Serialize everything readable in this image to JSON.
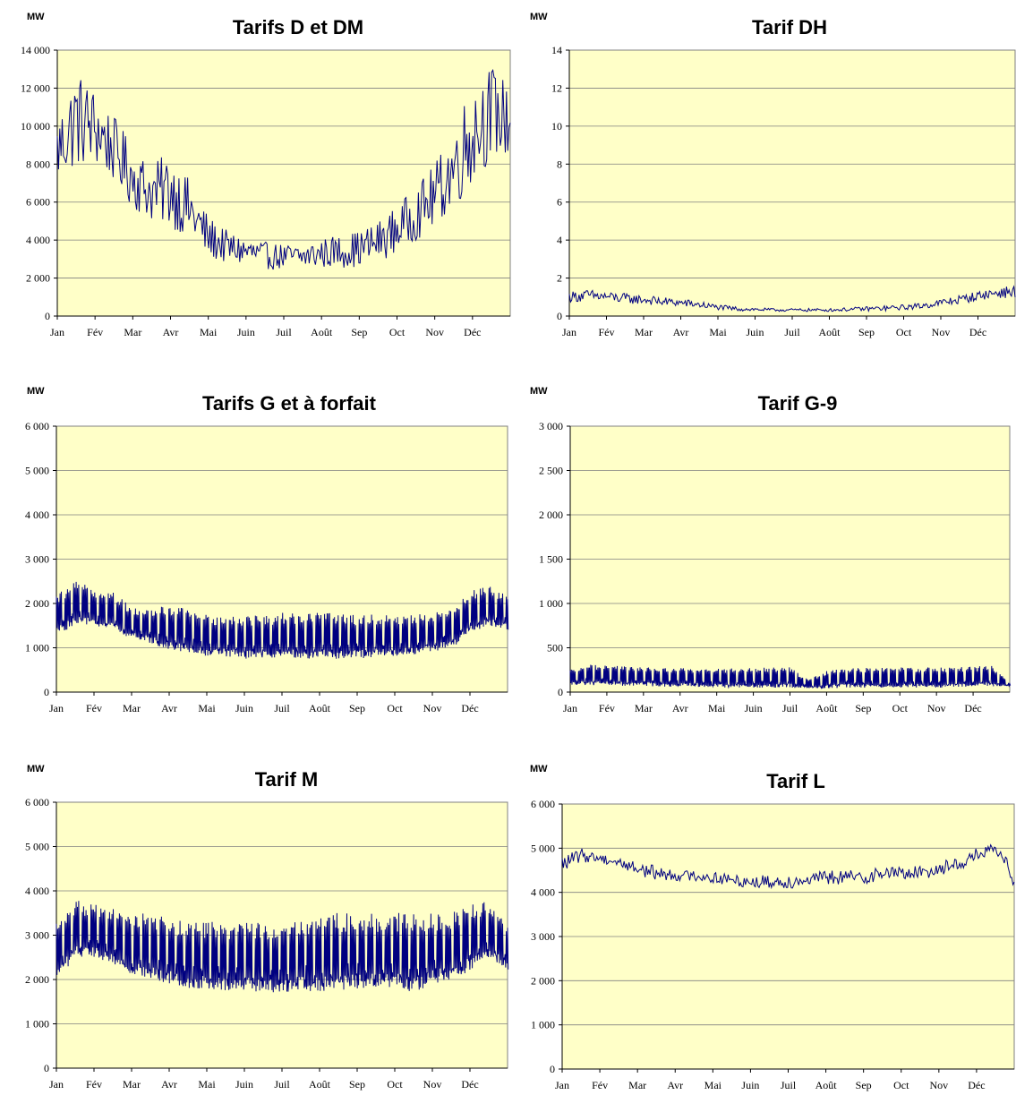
{
  "chart_data": [
    {
      "type": "line",
      "title": "Tarifs D et DM",
      "ylabel": "MW",
      "ylim": [
        0,
        14000
      ],
      "yticks": [
        0,
        2000,
        4000,
        6000,
        8000,
        10000,
        12000,
        14000
      ],
      "ytick_labels": [
        "0",
        "2 000",
        "4 000",
        "6 000",
        "8 000",
        "10 000",
        "12 000",
        "14 000"
      ],
      "categories": [
        "Jan",
        "Fév",
        "Mar",
        "Avr",
        "Mai",
        "Juin",
        "Juil",
        "Août",
        "Sep",
        "Oct",
        "Nov",
        "Déc"
      ],
      "grid": true,
      "series": [
        {
          "x": [
            0,
            0.5,
            1,
            1.5,
            2,
            2.5,
            3,
            3.5,
            4,
            4.5,
            5,
            5.5,
            6,
            6.5,
            7,
            7.5,
            8,
            8.5,
            9,
            9.5,
            10,
            10.5,
            11,
            11.5,
            12
          ],
          "low": [
            6000,
            6500,
            6800,
            6200,
            4800,
            4200,
            3700,
            3200,
            2400,
            2300,
            2200,
            2100,
            2100,
            2100,
            2100,
            2100,
            2100,
            2300,
            2700,
            3300,
            3800,
            4500,
            5500,
            7000,
            7500
          ],
          "high": [
            10500,
            13000,
            12000,
            10500,
            9000,
            8000,
            8700,
            7200,
            5300,
            4500,
            4200,
            3900,
            3800,
            3800,
            4100,
            4300,
            4500,
            5000,
            5800,
            6800,
            8000,
            10000,
            12500,
            13300,
            12000
          ]
        }
      ]
    },
    {
      "type": "line",
      "title": "Tarif DH",
      "ylabel": "MW",
      "ylim": [
        0,
        14
      ],
      "yticks": [
        0,
        2,
        4,
        6,
        8,
        10,
        12,
        14
      ],
      "ytick_labels": [
        "0",
        "2",
        "4",
        "6",
        "8",
        "10",
        "12",
        "14"
      ],
      "categories": [
        "Jan",
        "Fév",
        "Mar",
        "Avr",
        "Mai",
        "Juin",
        "Juil",
        "Août",
        "Sep",
        "Oct",
        "Nov",
        "Déc"
      ],
      "grid": true,
      "series": [
        {
          "x": [
            0,
            0.5,
            1,
            1.5,
            2,
            2.5,
            3,
            3.5,
            4,
            4.5,
            5,
            5.5,
            6,
            6.5,
            7,
            7.5,
            8,
            8.5,
            9,
            9.5,
            10,
            10.5,
            11,
            11.5,
            12
          ],
          "low": [
            0.6,
            0.6,
            0.6,
            0.5,
            0.5,
            0.4,
            0.4,
            0.3,
            0.25,
            0.2,
            0.2,
            0.2,
            0.2,
            0.2,
            0.2,
            0.2,
            0.2,
            0.2,
            0.25,
            0.3,
            0.4,
            0.5,
            0.7,
            0.8,
            0.8
          ],
          "high": [
            1.3,
            1.4,
            1.3,
            1.2,
            1.1,
            1.0,
            0.9,
            0.8,
            0.6,
            0.5,
            0.45,
            0.4,
            0.4,
            0.4,
            0.4,
            0.45,
            0.5,
            0.55,
            0.6,
            0.7,
            0.9,
            1.1,
            1.3,
            1.5,
            1.6
          ]
        }
      ]
    },
    {
      "type": "line",
      "title": "Tarifs G et à forfait",
      "ylabel": "MW",
      "ylim": [
        0,
        6000
      ],
      "yticks": [
        0,
        1000,
        2000,
        3000,
        4000,
        5000,
        6000
      ],
      "ytick_labels": [
        "0",
        "1 000",
        "2 000",
        "3 000",
        "4 000",
        "5 000",
        "6 000"
      ],
      "categories": [
        "Jan",
        "Fév",
        "Mar",
        "Avr",
        "Mai",
        "Juin",
        "Juil",
        "Août",
        "Sep",
        "Oct",
        "Nov",
        "Déc"
      ],
      "grid": true,
      "series": [
        {
          "x": [
            0,
            0.5,
            1,
            1.5,
            2,
            2.5,
            3,
            3.5,
            4,
            4.5,
            5,
            5.5,
            6,
            6.5,
            7,
            7.5,
            8,
            8.5,
            9,
            9.5,
            10,
            10.5,
            11,
            11.5,
            12
          ],
          "low": [
            1300,
            1500,
            1500,
            1400,
            1200,
            1100,
            950,
            900,
            800,
            800,
            750,
            750,
            750,
            750,
            750,
            750,
            750,
            800,
            800,
            850,
            900,
            1000,
            1300,
            1500,
            1400
          ],
          "high": [
            2200,
            2500,
            2350,
            2300,
            1900,
            1900,
            1950,
            1900,
            1750,
            1750,
            1750,
            1750,
            1800,
            1800,
            1800,
            1800,
            1750,
            1750,
            1750,
            1750,
            1800,
            1900,
            2300,
            2400,
            2200
          ]
        }
      ]
    },
    {
      "type": "line",
      "title": "Tarif G-9",
      "ylabel": "MW",
      "ylim": [
        0,
        3000
      ],
      "yticks": [
        0,
        500,
        1000,
        1500,
        2000,
        2500,
        3000
      ],
      "ytick_labels": [
        "0",
        "500",
        "1 000",
        "1 500",
        "2 000",
        "2 500",
        "3 000"
      ],
      "categories": [
        "Jan",
        "Fév",
        "Mar",
        "Avr",
        "Mai",
        "Juin",
        "Juil",
        "Août",
        "Sep",
        "Oct",
        "Nov",
        "Déc"
      ],
      "grid": true,
      "series": [
        {
          "x": [
            0,
            0.5,
            1,
            1.5,
            2,
            2.5,
            3,
            3.5,
            4,
            4.5,
            5,
            5.5,
            6,
            6.5,
            7,
            7.5,
            8,
            8.5,
            9,
            9.5,
            10,
            10.5,
            11,
            11.5,
            12
          ],
          "low": [
            80,
            80,
            80,
            70,
            70,
            60,
            60,
            60,
            50,
            50,
            50,
            50,
            50,
            40,
            40,
            50,
            50,
            50,
            50,
            50,
            50,
            50,
            60,
            60,
            70
          ],
          "high": [
            250,
            310,
            300,
            290,
            280,
            280,
            270,
            270,
            270,
            270,
            270,
            280,
            280,
            140,
            240,
            280,
            280,
            280,
            280,
            280,
            280,
            280,
            290,
            300,
            100
          ]
        }
      ]
    },
    {
      "type": "line",
      "title": "Tarif M",
      "ylabel": "MW",
      "ylim": [
        0,
        6000
      ],
      "yticks": [
        0,
        1000,
        2000,
        3000,
        4000,
        5000,
        6000
      ],
      "ytick_labels": [
        "0",
        "1 000",
        "2 000",
        "3 000",
        "4 000",
        "5 000",
        "6 000"
      ],
      "categories": [
        "Jan",
        "Fév",
        "Mar",
        "Avr",
        "Mai",
        "Juin",
        "Juil",
        "Août",
        "Sep",
        "Oct",
        "Nov",
        "Déc"
      ],
      "grid": true,
      "series": [
        {
          "x": [
            0,
            0.5,
            1,
            1.5,
            2,
            2.5,
            3,
            3.5,
            4,
            4.5,
            5,
            5.5,
            6,
            6.5,
            7,
            7.5,
            8,
            8.5,
            9,
            9.5,
            10,
            10.5,
            11,
            11.5,
            12
          ],
          "low": [
            2000,
            2500,
            2500,
            2300,
            2100,
            2000,
            1900,
            1800,
            1800,
            1750,
            1750,
            1700,
            1700,
            1750,
            1700,
            1750,
            1800,
            1800,
            1800,
            1700,
            1900,
            2000,
            2200,
            2500,
            2200
          ],
          "high": [
            3300,
            3800,
            3700,
            3600,
            3500,
            3500,
            3400,
            3300,
            3300,
            3300,
            3300,
            3300,
            3300,
            3400,
            3500,
            3500,
            3500,
            3500,
            3500,
            3500,
            3500,
            3500,
            3700,
            3800,
            3200
          ]
        }
      ]
    },
    {
      "type": "line",
      "title": "Tarif L",
      "ylabel": "MW",
      "ylim": [
        0,
        6000
      ],
      "yticks": [
        0,
        1000,
        2000,
        3000,
        4000,
        5000,
        6000
      ],
      "ytick_labels": [
        "0",
        "1 000",
        "2 000",
        "3 000",
        "4 000",
        "5 000",
        "6 000"
      ],
      "categories": [
        "Jan",
        "Fév",
        "Mar",
        "Avr",
        "Mai",
        "Juin",
        "Juil",
        "Août",
        "Sep",
        "Oct",
        "Nov",
        "Déc"
      ],
      "grid": true,
      "series": [
        {
          "x": [
            0,
            0.5,
            1,
            1.5,
            2,
            2.5,
            3,
            3.5,
            4,
            4.5,
            5,
            5.5,
            6,
            6.5,
            7,
            7.5,
            8,
            8.5,
            9,
            9.5,
            10,
            10.5,
            11,
            11.5,
            12
          ],
          "low": [
            4400,
            4600,
            4600,
            4500,
            4300,
            4200,
            4200,
            4200,
            4100,
            4100,
            4000,
            4000,
            4000,
            4100,
            4100,
            4100,
            4100,
            4200,
            4200,
            4200,
            4300,
            4400,
            4600,
            4800,
            4000
          ],
          "high": [
            4800,
            5000,
            4900,
            4800,
            4700,
            4600,
            4500,
            4500,
            4500,
            4400,
            4400,
            4400,
            4400,
            4400,
            4500,
            4500,
            4500,
            4600,
            4600,
            4600,
            4700,
            4800,
            5000,
            5100,
            4600
          ]
        }
      ]
    }
  ]
}
